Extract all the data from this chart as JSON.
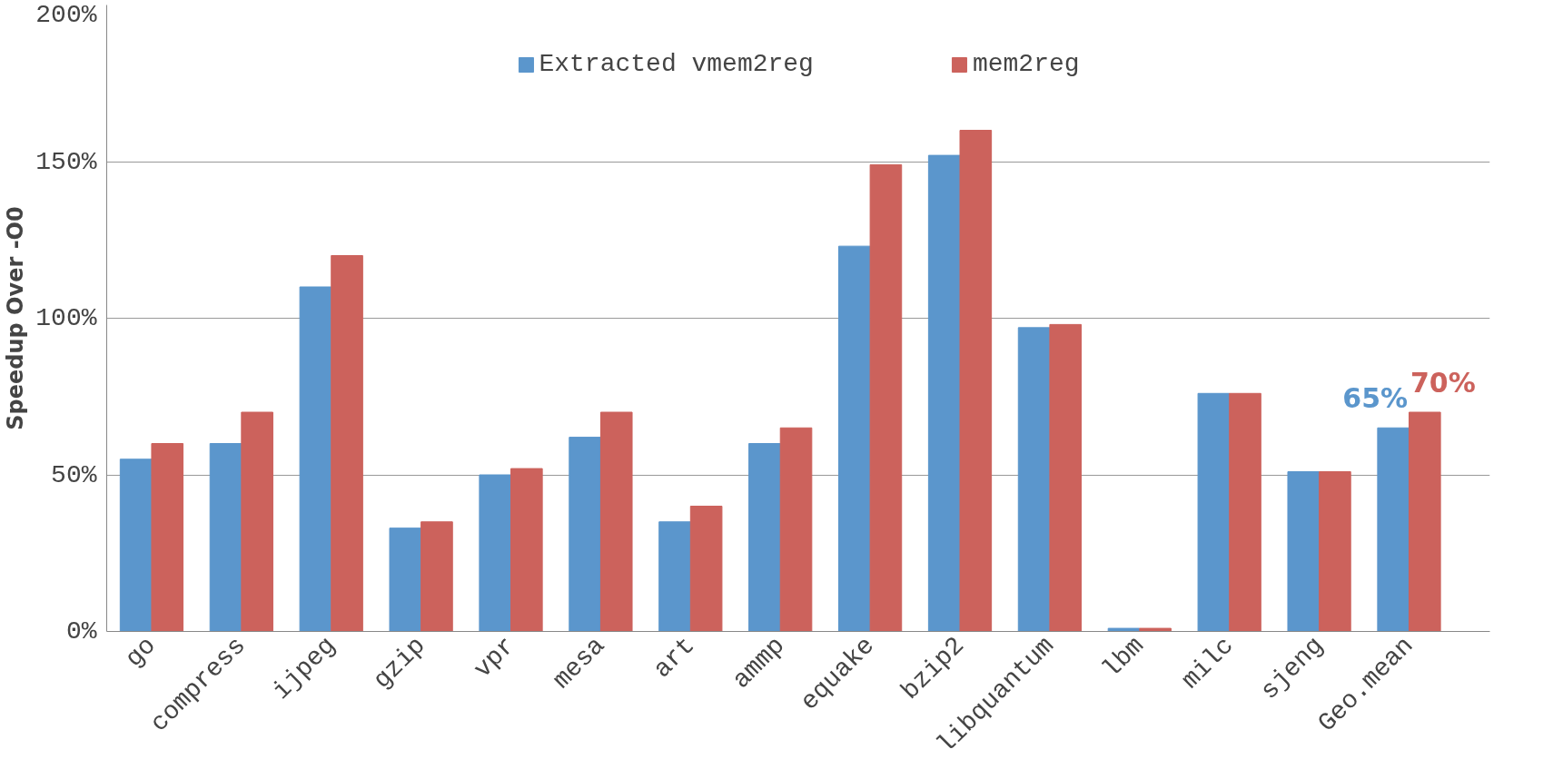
{
  "chart_data": {
    "type": "bar",
    "ylabel": "Speedup Over -O0",
    "categories": [
      "go",
      "compress",
      "ijpeg",
      "gzip",
      "vpr",
      "mesa",
      "art",
      "ammp",
      "equake",
      "bzip2",
      "libquantum",
      "lbm",
      "milc",
      "sjeng",
      "Geo.mean"
    ],
    "series": [
      {
        "name": "Extracted vmem2reg",
        "color": "#5b96cc",
        "values": [
          55,
          60,
          110,
          33,
          50,
          62,
          35,
          60,
          123,
          152,
          97,
          1,
          76,
          51,
          65
        ],
        "value_labels": [
          null,
          null,
          null,
          null,
          null,
          null,
          null,
          null,
          null,
          null,
          null,
          null,
          null,
          null,
          "65%"
        ]
      },
      {
        "name": "mem2reg",
        "color": "#cc625c",
        "values": [
          60,
          70,
          120,
          35,
          52,
          70,
          40,
          65,
          149,
          160,
          98,
          1,
          76,
          51,
          70
        ],
        "value_labels": [
          null,
          null,
          null,
          null,
          null,
          null,
          null,
          null,
          null,
          null,
          null,
          null,
          null,
          null,
          "70%"
        ]
      }
    ],
    "ylim": [
      0,
      200
    ],
    "yticks": [
      {
        "value": 0,
        "label": "0%"
      },
      {
        "value": 50,
        "label": "50%"
      },
      {
        "value": 100,
        "label": "100%"
      },
      {
        "value": 150,
        "label": "150%"
      },
      {
        "value": 200,
        "label": "200%"
      }
    ],
    "grid": "y",
    "legend": "top"
  }
}
